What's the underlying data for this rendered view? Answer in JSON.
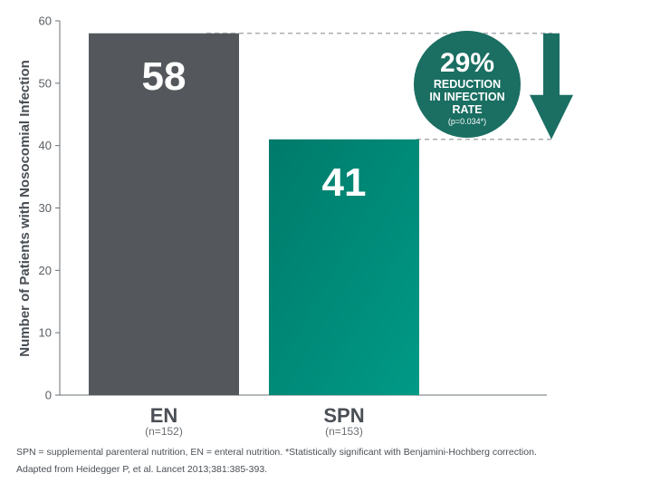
{
  "chart_data": {
    "type": "bar",
    "ylabel": "Number of Patients with Nosocomial Infection",
    "xlabel": "",
    "ylim": [
      0,
      60
    ],
    "yticks": [
      0,
      10,
      20,
      30,
      40,
      50,
      60
    ],
    "grid": false,
    "categories": [
      "EN",
      "SPN"
    ],
    "category_notes": [
      "(n=152)",
      "(n=153)"
    ],
    "values": [
      58,
      41
    ],
    "value_labels": [
      "58",
      "41"
    ],
    "colors": [
      "#54585c",
      "#007f6e"
    ],
    "annotation": {
      "percent": "29%",
      "lines": [
        "REDUCTION",
        "IN INFECTION",
        "RATE"
      ],
      "pvalue": "(p=0.034*)",
      "from": 58,
      "to": 41,
      "color": "#1a6e62"
    }
  },
  "footnotes": [
    "SPN = supplemental parenteral nutrition, EN = enteral nutrition. *Statistically significant with Benjamini-Hochberg correction.",
    "Adapted from Heidegger P, et al. Lancet 2013;381:385-393."
  ]
}
